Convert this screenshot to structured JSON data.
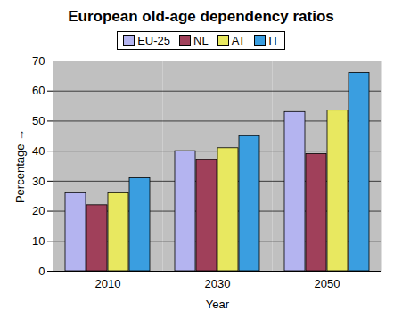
{
  "chart_data": {
    "type": "bar",
    "title": "European old-age dependency ratios",
    "x_label": "Year",
    "y_label": "Percentage",
    "categories": [
      "2010",
      "2030",
      "2050"
    ],
    "series": [
      {
        "name": "EU-25",
        "color": "#b4b4f0",
        "values": [
          26,
          40,
          53
        ]
      },
      {
        "name": "NL",
        "color": "#a0405a",
        "values": [
          22,
          37,
          39
        ]
      },
      {
        "name": "AT",
        "color": "#e8e860",
        "values": [
          26,
          41,
          53.5
        ]
      },
      {
        "name": "IT",
        "color": "#3a9ee0",
        "values": [
          31,
          45,
          66
        ]
      }
    ],
    "ylim": [
      0,
      70
    ],
    "yticks": [
      0,
      10,
      20,
      30,
      40,
      50,
      60,
      70
    ],
    "grid": true,
    "legend": "top"
  }
}
